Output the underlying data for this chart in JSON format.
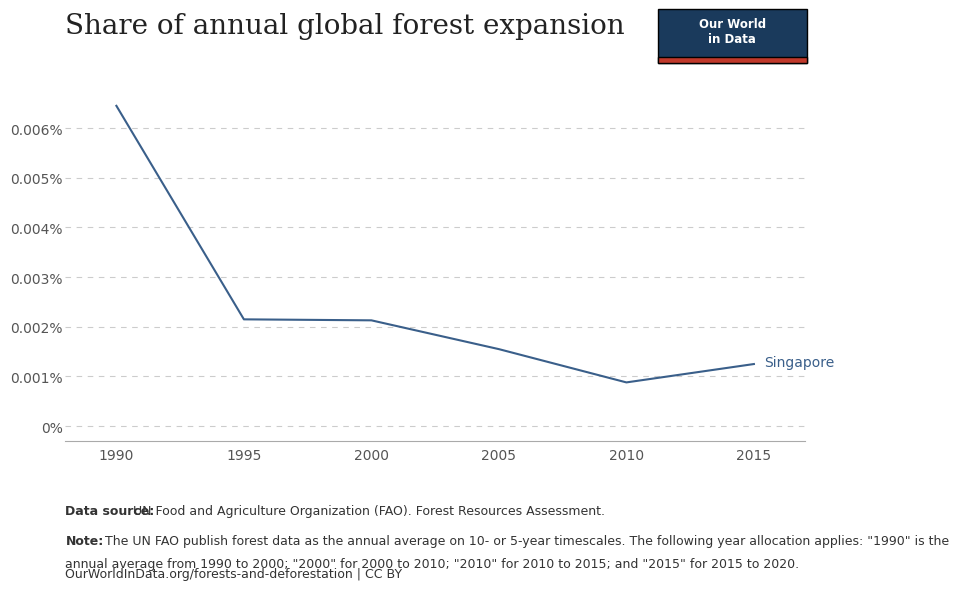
{
  "title": "Share of annual global forest expansion",
  "x": [
    1990,
    1995,
    2000,
    2005,
    2010,
    2015
  ],
  "y": [
    6.45e-05,
    2.15e-05,
    2.13e-05,
    1.55e-05,
    8.8e-06,
    1.25e-05
  ],
  "line_color": "#3a5f8a",
  "label": "Singapore",
  "ytick_values": [
    0,
    1e-05,
    2e-05,
    3e-05,
    4e-05,
    5e-05,
    6e-05
  ],
  "ytick_labels": [
    "0%",
    "0.001%",
    "0.002%",
    "0.003%",
    "0.004%",
    "0.005%",
    "0.006%"
  ],
  "xticks": [
    1990,
    1995,
    2000,
    2005,
    2010,
    2015
  ],
  "xlim": [
    1988.0,
    2017.0
  ],
  "ylim": [
    -3e-06,
    6.95e-05
  ],
  "background_color": "#ffffff",
  "grid_color": "#cccccc",
  "source_bold": "Data source:",
  "source_rest": " UN Food and Agriculture Organization (FAO). Forest Resources Assessment.",
  "note_bold": "Note:",
  "note_rest": " The UN FAO publish forest data as the annual average on 10- or 5-year timescales. The following year allocation applies: \"1990\" is the annual average from 1990 to 2000; \"2000\" for 2000 to 2010; \"2010\" for 2010 to 2015; and \"2015\" for 2015 to 2020.",
  "url_text": "OurWorldInData.org/forests-and-deforestation | CC BY",
  "owid_box_color": "#1a3a5c",
  "owid_bar_color": "#c0392b",
  "title_fontsize": 20,
  "tick_fontsize": 10,
  "annotation_fontsize": 10,
  "footer_fontsize": 9
}
